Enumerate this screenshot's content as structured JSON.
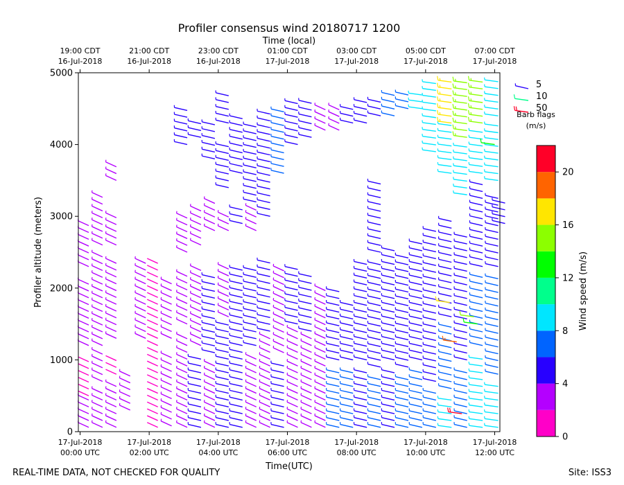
{
  "chart_data": {
    "type": "wind-barb profile",
    "title": "Profiler consensus wind 20180717 1200",
    "xlabel": "Time(UTC)",
    "xlabel_top": "Time (local)",
    "ylabel": "Profiler altitude (meters)",
    "x_unit": "hours UTC since 2018-07-17 00:00",
    "xlim": [
      -0.05,
      12.15
    ],
    "ylim": [
      0,
      5000
    ],
    "y_ticks": [
      0,
      1000,
      2000,
      3000,
      4000,
      5000
    ],
    "x_ticks_bottom": [
      {
        "x": 0,
        "line1": "17-Jul-2018",
        "line2": "00:00 UTC"
      },
      {
        "x": 2,
        "line1": "17-Jul-2018",
        "line2": "02:00 UTC"
      },
      {
        "x": 4,
        "line1": "17-Jul-2018",
        "line2": "04:00 UTC"
      },
      {
        "x": 6,
        "line1": "17-Jul-2018",
        "line2": "06:00 UTC"
      },
      {
        "x": 8,
        "line1": "17-Jul-2018",
        "line2": "08:00 UTC"
      },
      {
        "x": 10,
        "line1": "17-Jul-2018",
        "line2": "10:00 UTC"
      },
      {
        "x": 12,
        "line1": "17-Jul-2018",
        "line2": "12:00 UTC"
      }
    ],
    "x_ticks_top": [
      {
        "x": 0,
        "line1": "19:00 CDT",
        "line2": "16-Jul-2018"
      },
      {
        "x": 2,
        "line1": "21:00 CDT",
        "line2": "16-Jul-2018"
      },
      {
        "x": 4,
        "line1": "23:00 CDT",
        "line2": "16-Jul-2018"
      },
      {
        "x": 6,
        "line1": "01:00 CDT",
        "line2": "17-Jul-2018"
      },
      {
        "x": 8,
        "line1": "03:00 CDT",
        "line2": "17-Jul-2018"
      },
      {
        "x": 10,
        "line1": "05:00 CDT",
        "line2": "17-Jul-2018"
      },
      {
        "x": 12,
        "line1": "07:00 CDT",
        "line2": "17-Jul-2018"
      }
    ],
    "legend": {
      "placement": "top-right, outside axes",
      "entries": [
        {
          "label": "5",
          "speed": 5
        },
        {
          "label": "10",
          "speed": 10
        },
        {
          "label": "50",
          "speed": 50
        }
      ],
      "title_line1": "Barb flags",
      "title_line2": "(m/s)"
    },
    "colorbar": {
      "label": "Wind speed (m/s)",
      "range": [
        0,
        22
      ],
      "ticks": [
        0,
        4,
        8,
        12,
        16,
        20
      ],
      "bins": [
        {
          "from": 0,
          "to": 2,
          "color": "#ff00c8"
        },
        {
          "from": 2,
          "to": 4,
          "color": "#b400ff"
        },
        {
          "from": 4,
          "to": 6,
          "color": "#2800ff"
        },
        {
          "from": 6,
          "to": 8,
          "color": "#0064ff"
        },
        {
          "from": 8,
          "to": 10,
          "color": "#00e6ff"
        },
        {
          "from": 10,
          "to": 12,
          "color": "#00ff8c"
        },
        {
          "from": 12,
          "to": 14,
          "color": "#00ff00"
        },
        {
          "from": 14,
          "to": 16,
          "color": "#8cff00"
        },
        {
          "from": 16,
          "to": 18,
          "color": "#ffe600"
        },
        {
          "from": 18,
          "to": 20,
          "color": "#ff6400"
        },
        {
          "from": 20,
          "to": 22,
          "color": "#ff0028"
        }
      ]
    },
    "profiles": [
      {
        "t": 0.05,
        "bands": [
          [
            60,
            500,
            3
          ],
          [
            500,
            1000,
            2
          ],
          [
            1200,
            2100,
            3
          ],
          [
            2300,
            2900,
            3.5
          ]
        ]
      },
      {
        "t": 0.45,
        "bands": [
          [
            60,
            600,
            3
          ],
          [
            700,
            1100,
            2
          ],
          [
            1200,
            2500,
            3.5
          ],
          [
            2600,
            3300,
            3.5
          ]
        ]
      },
      {
        "t": 0.85,
        "bands": [
          [
            60,
            700,
            3
          ],
          [
            800,
            1000,
            2
          ],
          [
            1300,
            2400,
            3.5
          ],
          [
            2600,
            3000,
            3.5
          ],
          [
            3500,
            3750,
            4
          ]
        ]
      },
      {
        "t": 1.25,
        "bands": [
          [
            300,
            800,
            3
          ]
        ]
      },
      {
        "t": 1.7,
        "bands": [
          [
            1300,
            2400,
            3
          ]
        ]
      },
      {
        "t": 2.05,
        "bands": [
          [
            60,
            1200,
            2
          ],
          [
            1300,
            2400,
            2.5
          ]
        ]
      },
      {
        "t": 2.45,
        "bands": [
          [
            80,
            1100,
            3
          ],
          [
            1300,
            2100,
            2.5
          ]
        ]
      },
      {
        "t": 2.9,
        "bands": [
          [
            60,
            1300,
            4
          ],
          [
            1500,
            2200,
            3
          ],
          [
            2500,
            3000,
            3
          ],
          [
            4000,
            4500,
            6
          ]
        ]
      },
      {
        "t": 3.3,
        "bands": [
          [
            60,
            1100,
            4
          ],
          [
            1200,
            2300,
            3
          ],
          [
            2600,
            3100,
            3
          ],
          [
            4100,
            4300,
            5
          ]
        ]
      },
      {
        "t": 3.7,
        "bands": [
          [
            60,
            1000,
            3
          ],
          [
            1100,
            2200,
            4
          ],
          [
            2800,
            3200,
            3
          ],
          [
            3800,
            4300,
            5
          ]
        ]
      },
      {
        "t": 4.1,
        "bands": [
          [
            60,
            1500,
            5
          ],
          [
            1600,
            2300,
            4
          ],
          [
            2800,
            3000,
            3
          ],
          [
            3400,
            4000,
            6
          ],
          [
            4300,
            4700,
            5
          ]
        ]
      },
      {
        "t": 4.5,
        "bands": [
          [
            60,
            1200,
            4
          ],
          [
            1300,
            2300,
            5
          ],
          [
            2900,
            3100,
            4
          ],
          [
            3600,
            4400,
            5
          ]
        ]
      },
      {
        "t": 4.9,
        "bands": [
          [
            60,
            1100,
            3
          ],
          [
            1200,
            2300,
            5
          ],
          [
            2800,
            3100,
            3
          ],
          [
            3200,
            4300,
            5
          ]
        ]
      },
      {
        "t": 5.3,
        "bands": [
          [
            60,
            1300,
            3
          ],
          [
            1400,
            2400,
            4
          ],
          [
            3000,
            4500,
            5
          ]
        ]
      },
      {
        "t": 5.7,
        "bands": [
          [
            60,
            1000,
            4
          ],
          [
            1100,
            2300,
            3
          ],
          [
            3600,
            4500,
            6
          ]
        ]
      },
      {
        "t": 6.1,
        "bands": [
          [
            60,
            1400,
            3
          ],
          [
            1500,
            2300,
            5
          ],
          [
            4000,
            4600,
            5
          ]
        ]
      },
      {
        "t": 6.5,
        "bands": [
          [
            60,
            1300,
            3
          ],
          [
            1400,
            2200,
            4
          ],
          [
            4100,
            4600,
            4
          ]
        ]
      },
      {
        "t": 6.9,
        "bands": [
          [
            60,
            1200,
            4
          ],
          [
            1300,
            2000,
            3
          ],
          [
            4200,
            4500,
            4
          ]
        ]
      },
      {
        "t": 7.3,
        "bands": [
          [
            60,
            900,
            6
          ],
          [
            1000,
            2000,
            4
          ],
          [
            4200,
            4500,
            3
          ]
        ]
      },
      {
        "t": 7.7,
        "bands": [
          [
            60,
            900,
            7
          ],
          [
            1000,
            1800,
            5
          ],
          [
            4300,
            4500,
            5
          ]
        ]
      },
      {
        "t": 8.1,
        "bands": [
          [
            60,
            900,
            6
          ],
          [
            1000,
            2400,
            5
          ],
          [
            4300,
            4600,
            5
          ]
        ]
      },
      {
        "t": 8.5,
        "bands": [
          [
            60,
            800,
            7
          ],
          [
            900,
            2400,
            5
          ],
          [
            2500,
            3500,
            4
          ],
          [
            4400,
            4600,
            5
          ]
        ]
      },
      {
        "t": 8.9,
        "bands": [
          [
            60,
            900,
            6
          ],
          [
            1000,
            2600,
            5
          ],
          [
            4400,
            4700,
            7
          ]
        ]
      },
      {
        "t": 9.3,
        "bands": [
          [
            60,
            800,
            7
          ],
          [
            900,
            2500,
            4
          ],
          [
            4500,
            4700,
            7
          ]
        ]
      },
      {
        "t": 9.7,
        "bands": [
          [
            60,
            900,
            6
          ],
          [
            1000,
            2700,
            5
          ],
          [
            4500,
            4700,
            8
          ]
        ]
      },
      {
        "t": 10.1,
        "bands": [
          [
            60,
            600,
            8
          ],
          [
            700,
            2800,
            5
          ],
          [
            3900,
            4900,
            9
          ]
        ]
      },
      {
        "t": 10.55,
        "bands": [
          [
            60,
            500,
            9
          ],
          [
            600,
            1500,
            6
          ],
          [
            1600,
            3000,
            5
          ],
          [
            3600,
            4300,
            9
          ],
          [
            4300,
            4950,
            17
          ]
        ]
      },
      {
        "t": 11.0,
        "bands": [
          [
            60,
            900,
            7
          ],
          [
            1000,
            2800,
            5
          ],
          [
            3300,
            4000,
            9
          ],
          [
            4100,
            4950,
            16
          ]
        ]
      },
      {
        "t": 11.45,
        "bands": [
          [
            60,
            1100,
            8
          ],
          [
            1200,
            2200,
            6
          ],
          [
            2300,
            3500,
            5
          ],
          [
            3600,
            4200,
            8
          ],
          [
            4300,
            4950,
            15
          ]
        ]
      },
      {
        "t": 11.9,
        "bands": [
          [
            60,
            700,
            9
          ],
          [
            800,
            2200,
            6
          ],
          [
            2300,
            3300,
            5
          ],
          [
            3500,
            4300,
            9
          ],
          [
            4400,
            4950,
            9
          ]
        ]
      },
      {
        "t": 12.1,
        "bands": [
          [
            2900,
            3200,
            5
          ]
        ]
      }
    ],
    "highlight_barbs": [
      {
        "t": 10.5,
        "alt": 1800,
        "speed": 16
      },
      {
        "t": 10.7,
        "alt": 1250,
        "speed": 18
      },
      {
        "t": 10.85,
        "alt": 250,
        "speed": 21
      },
      {
        "t": 11.2,
        "alt": 1600,
        "speed": 14
      },
      {
        "t": 11.3,
        "alt": 1500,
        "speed": 13
      },
      {
        "t": 11.8,
        "alt": 4000,
        "speed": 12
      }
    ]
  },
  "footer": {
    "disclaimer": "REAL-TIME DATA, NOT CHECKED FOR QUALITY",
    "site": "Site: ISS3"
  }
}
